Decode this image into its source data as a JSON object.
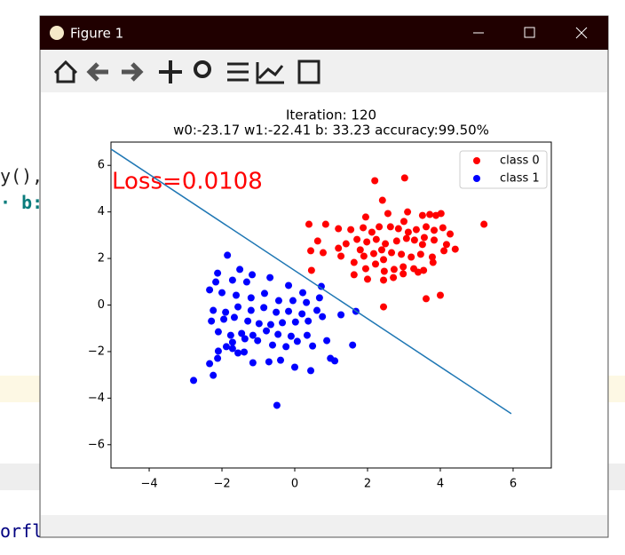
{
  "background": {
    "code_lines": [
      "y(),",
      "· b:",
      "orfl"
    ]
  },
  "window": {
    "title": "Figure 1"
  },
  "chart_data": {
    "type": "scatter",
    "title": "Iteration: 120",
    "subtitle": "w0:-23.17 w1:-22.41 b: 33.23 accuracy:99.50%",
    "annotation": "Loss=0.0108",
    "annotation_color": "#ff0000",
    "xlim": [
      -5.05,
      7.05
    ],
    "ylim": [
      -7,
      7
    ],
    "xticks": [
      {
        "value": -4,
        "label": "−4"
      },
      {
        "value": -2,
        "label": "−2"
      },
      0,
      2,
      4,
      6
    ],
    "yticks": [
      {
        "value": -6,
        "label": "−6"
      },
      {
        "value": -4,
        "label": "−4"
      },
      {
        "value": -2,
        "label": "−2"
      },
      0,
      2,
      4,
      6
    ],
    "legend": "upper right",
    "line": {
      "color": "#1f77b4",
      "x": [
        -5.05,
        5.95
      ],
      "y": [
        6.7,
        -4.67
      ]
    },
    "series": [
      {
        "name": "class 0",
        "color": "#ff0000",
        "x": [
          2.2,
          3.02,
          2.41,
          5.2,
          0.39,
          0.85,
          1.95,
          2.56,
          3.1,
          3.51,
          3.71,
          3.88,
          4.02,
          1.2,
          1.54,
          1.88,
          2.12,
          2.32,
          2.63,
          2.85,
          3.12,
          3.34,
          3.61,
          3.83,
          4.07,
          4.27,
          0.63,
          1.2,
          1.41,
          1.71,
          1.98,
          2.24,
          2.49,
          2.8,
          3.07,
          3.29,
          3.56,
          3.83,
          4.17,
          4.41,
          0.44,
          1.27,
          1.63,
          1.9,
          2.17,
          2.44,
          2.66,
          2.93,
          3.2,
          3.46,
          3.78,
          4.1,
          0.46,
          1.63,
          1.95,
          2.22,
          2.46,
          2.73,
          2.98,
          3.27,
          3.54,
          3.8,
          2.0,
          2.44,
          2.71,
          2.98,
          3.39,
          3.61,
          4.0,
          2.44,
          0.78,
          1.8,
          3.51,
          2.39,
          3.0
        ],
        "y": [
          5.34,
          5.46,
          4.5,
          3.47,
          3.47,
          3.47,
          3.78,
          3.93,
          4.0,
          3.85,
          3.89,
          3.85,
          3.93,
          3.28,
          3.24,
          3.32,
          3.13,
          3.36,
          3.36,
          3.28,
          3.13,
          3.24,
          3.36,
          3.21,
          3.32,
          3.05,
          2.75,
          2.44,
          2.63,
          2.82,
          2.71,
          2.82,
          2.63,
          2.75,
          2.86,
          2.79,
          2.9,
          2.79,
          2.6,
          2.4,
          2.33,
          2.1,
          1.83,
          2.1,
          2.21,
          1.95,
          2.25,
          2.18,
          2.06,
          2.18,
          2.06,
          2.33,
          1.49,
          1.3,
          1.56,
          1.76,
          1.45,
          1.53,
          1.64,
          1.56,
          1.49,
          1.83,
          1.11,
          1.07,
          1.18,
          1.34,
          1.41,
          0.27,
          0.42,
          -0.08,
          2.25,
          2.37,
          2.6,
          2.37,
          3.59
        ]
      },
      {
        "name": "class 1",
        "color": "#0000ff",
        "x": [
          -1.85,
          -2.78,
          -2.24,
          -0.49,
          -2.12,
          -1.51,
          -1.17,
          -0.68,
          -0.17,
          0.22,
          0.73,
          -2.17,
          -1.71,
          -1.32,
          -2.34,
          -2.0,
          -1.61,
          -1.2,
          -0.83,
          -0.44,
          -0.05,
          0.32,
          0.68,
          -2.24,
          -1.9,
          -1.56,
          -1.2,
          -0.85,
          -0.51,
          -0.17,
          0.2,
          0.61,
          -2.29,
          -1.95,
          -1.66,
          -1.29,
          -0.98,
          -0.66,
          -0.34,
          0.02,
          0.37,
          0.76,
          1.27,
          1.68,
          -2.1,
          -1.76,
          -1.46,
          -1.15,
          -0.78,
          -0.46,
          -0.1,
          0.34,
          -1.71,
          -1.37,
          -1.02,
          -0.61,
          -0.24,
          0.07,
          0.49,
          0.88,
          1.59,
          -2.1,
          -1.71,
          -1.39,
          -1.15,
          -0.71,
          -0.39,
          0.0,
          0.44,
          0.98,
          1.1,
          -2.12,
          -1.88,
          -1.56,
          -2.34
        ],
        "y": [
          2.14,
          -3.24,
          -3.02,
          -4.31,
          1.37,
          1.53,
          1.3,
          1.18,
          0.84,
          0.53,
          0.8,
          0.99,
          1.07,
          0.99,
          0.65,
          0.53,
          0.42,
          0.31,
          0.5,
          0.19,
          0.19,
          0.11,
          0.31,
          -0.23,
          -0.31,
          -0.08,
          -0.23,
          -0.11,
          -0.31,
          -0.27,
          -0.38,
          -0.23,
          -0.69,
          -0.61,
          -0.53,
          -0.69,
          -0.8,
          -0.84,
          -0.76,
          -0.73,
          -0.69,
          -0.5,
          -0.42,
          -0.27,
          -1.15,
          -1.3,
          -1.22,
          -1.3,
          -1.11,
          -1.26,
          -1.34,
          -1.3,
          -1.6,
          -1.45,
          -1.53,
          -1.72,
          -1.79,
          -1.56,
          -1.76,
          -1.53,
          -1.72,
          -1.98,
          -1.87,
          -2.02,
          -2.48,
          -2.44,
          -2.37,
          -2.67,
          -2.82,
          -2.29,
          -2.4,
          -2.29,
          -1.79,
          -2.06,
          -2.52
        ]
      }
    ]
  }
}
